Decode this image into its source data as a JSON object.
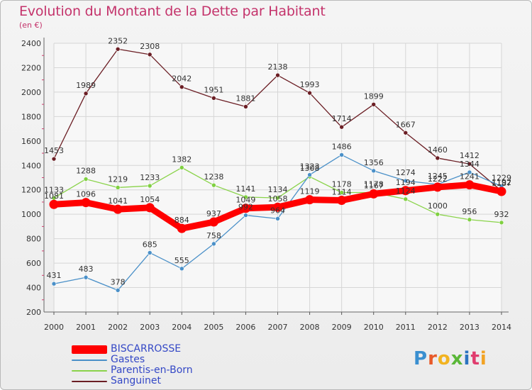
{
  "header": {
    "title": "Evolution du Montant de la Dette par Habitant",
    "subtitle": "(en €)"
  },
  "logo": {
    "letters": [
      "P",
      "r",
      "o",
      "x",
      "i",
      "t",
      "i"
    ]
  },
  "colors": {
    "BISCARROSSE": "#ff0000",
    "Gastes": "#4a90c8",
    "Parentis-en-Born": "#8ad34a",
    "Sanguinet": "#6b1e24"
  },
  "chart_data": {
    "type": "line",
    "title": "Evolution du Montant de la Dette par Habitant",
    "ylabel": "(en €)",
    "xlabel": "",
    "ylim": [
      200,
      2400
    ],
    "yticks": [
      200,
      400,
      600,
      800,
      1000,
      1200,
      1400,
      1600,
      1800,
      2000,
      2200,
      2400
    ],
    "grid": true,
    "legend": "bottom-left",
    "x": [
      "2000",
      "2001",
      "2002",
      "2003",
      "2004",
      "2005",
      "2006",
      "2007",
      "2008",
      "2009",
      "2010",
      "2011",
      "2012",
      "2013",
      "2014"
    ],
    "series": [
      {
        "name": "Sanguinet",
        "values": [
          1453,
          1989,
          2352,
          2308,
          2042,
          1951,
          1881,
          2138,
          1993,
          1714,
          1899,
          1667,
          1460,
          1412,
          1192
        ]
      },
      {
        "name": "Parentis-en-Born",
        "values": [
          1133,
          1288,
          1219,
          1233,
          1382,
          1238,
          1141,
          1134,
          1308,
          1178,
          1178,
          1124,
          1000,
          956,
          932
        ]
      },
      {
        "name": "Gastes",
        "values": [
          431,
          483,
          378,
          685,
          555,
          758,
          992,
          964,
          1323,
          1486,
          1356,
          1274,
          1245,
          1344,
          1229
        ]
      },
      {
        "name": "BISCARROSSE",
        "values": [
          1081,
          1096,
          1041,
          1054,
          884,
          937,
          1049,
          1058,
          1119,
          1114,
          1167,
          1194,
          1222,
          1241,
          1187
        ]
      }
    ]
  }
}
